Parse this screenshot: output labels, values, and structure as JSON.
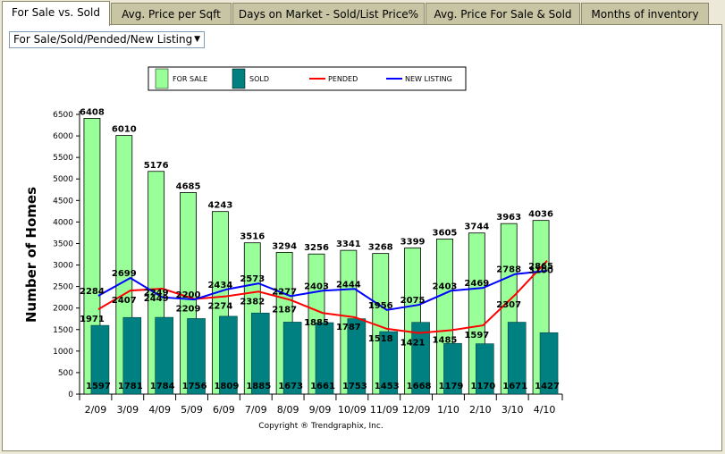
{
  "tabs": [
    {
      "label": "For Sale vs. Sold",
      "active": true
    },
    {
      "label": "Avg. Price per Sqft",
      "active": false
    },
    {
      "label": "Days on Market - Sold/List Price%",
      "active": false
    },
    {
      "label": "Avg. Price For Sale & Sold",
      "active": false
    },
    {
      "label": "Months of inventory",
      "active": false
    }
  ],
  "dropdown": {
    "selected": "For Sale/Sold/Pended/New Listing"
  },
  "chart_data": {
    "type": "bar",
    "ylabel": "Number of Homes",
    "xlabel": "",
    "ylim": [
      0,
      6500
    ],
    "yticks": [
      0,
      500,
      1000,
      1500,
      2000,
      2500,
      3000,
      3500,
      4000,
      4500,
      5000,
      5500,
      6000,
      6500
    ],
    "categories": [
      "2/09",
      "3/09",
      "4/09",
      "5/09",
      "6/09",
      "7/09",
      "8/09",
      "9/09",
      "10/09",
      "11/09",
      "12/09",
      "1/10",
      "2/10",
      "3/10",
      "4/10"
    ],
    "series": [
      {
        "name": "FOR SALE",
        "kind": "bar",
        "color": "#99ff99",
        "values": [
          6408,
          6010,
          5176,
          4685,
          4243,
          3516,
          3294,
          3256,
          3341,
          3268,
          3399,
          3605,
          3744,
          3963,
          4036
        ]
      },
      {
        "name": "SOLD",
        "kind": "bar",
        "color": "#008080",
        "values": [
          1597,
          1781,
          1784,
          1756,
          1809,
          1885,
          1673,
          1661,
          1753,
          1453,
          1668,
          1179,
          1170,
          1671,
          1427
        ]
      },
      {
        "name": "PENDED",
        "kind": "line",
        "color": "#ff0000",
        "values": [
          1971,
          2407,
          2449,
          2209,
          2274,
          2382,
          2187,
          1885,
          1787,
          1518,
          1421,
          1485,
          1597,
          2307,
          3100
        ]
      },
      {
        "name": "NEW LISTING",
        "kind": "line",
        "color": "#0000ff",
        "values": [
          2284,
          2699,
          2249,
          2200,
          2434,
          2573,
          2277,
          2403,
          2444,
          1956,
          2075,
          2403,
          2469,
          2788,
          2865
        ]
      }
    ],
    "legend_position": "top",
    "grid": false
  },
  "footer": {
    "copyright": "Copyright ® Trendgraphix, Inc."
  }
}
